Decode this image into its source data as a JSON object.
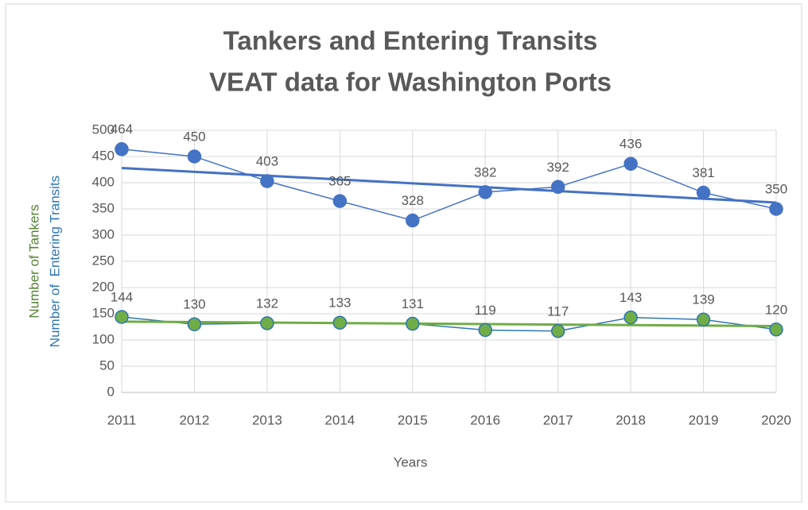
{
  "chart_data": {
    "type": "line",
    "title": [
      "Tankers and Entering Transits",
      "VEAT data for Washington Ports"
    ],
    "x_label": "Years",
    "y_label": [
      "Number of Tankers",
      "Number of  Entering Transits"
    ],
    "y_label_colors": [
      "#548235",
      "#2e75b6"
    ],
    "categories": [
      "2011",
      "2012",
      "2013",
      "2014",
      "2015",
      "2016",
      "2017",
      "2018",
      "2019",
      "2020"
    ],
    "series": [
      {
        "name": "Entering Transits",
        "color": "#4472c4",
        "line_color": "#4472c4",
        "trend_color": "#4472c4",
        "values": [
          464,
          450,
          403,
          365,
          328,
          382,
          392,
          436,
          381,
          350
        ]
      },
      {
        "name": "Tankers",
        "color": "#70ad47",
        "line_color": "#2e75b6",
        "trend_color": "#70ad47",
        "values": [
          144,
          130,
          132,
          133,
          131,
          119,
          117,
          143,
          139,
          120
        ]
      }
    ],
    "ylim": [
      0,
      500
    ],
    "yticks": [
      0,
      50,
      100,
      150,
      200,
      250,
      300,
      350,
      400,
      450,
      500
    ],
    "grid": true,
    "trendline": true,
    "data_labels": true
  }
}
